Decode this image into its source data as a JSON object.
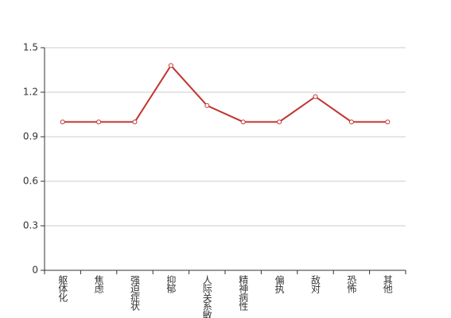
{
  "chart_data": {
    "type": "line",
    "categories": [
      "躯体化",
      "焦虑",
      "强迫症状",
      "抑郁",
      "人际关系敏感",
      "精神病性",
      "偏执",
      "敌对",
      "恐怖",
      "其他"
    ],
    "values": [
      1,
      1,
      1,
      1.38,
      1.11,
      1,
      1,
      1.17,
      1,
      1
    ],
    "color": "#c23531",
    "ylim": [
      0,
      1.5
    ],
    "yticks": [
      0,
      0.3,
      0.6,
      0.9,
      1.2,
      1.5
    ],
    "grid": true
  }
}
